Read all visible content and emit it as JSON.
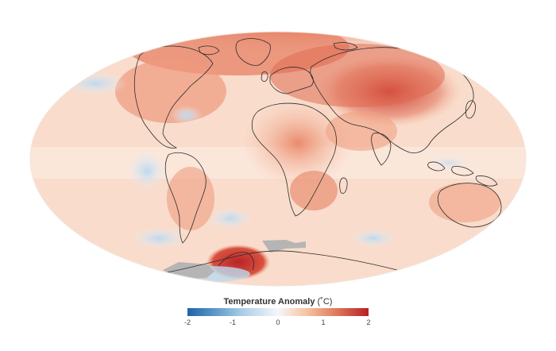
{
  "legend": {
    "title": "Temperature Anomaly",
    "unit": "(˚C)",
    "ticks": [
      "-2",
      "-1",
      "0",
      "1",
      "2"
    ],
    "range": [
      -2,
      2
    ],
    "colors": {
      "cold": "#1f63a8",
      "neutral": "#f5f7f9",
      "warm": "#b81f23"
    }
  },
  "map": {
    "projection": "Mollweide",
    "no_data_color": "#b5b5b5",
    "coastline_color": "#2b2b2b"
  }
}
